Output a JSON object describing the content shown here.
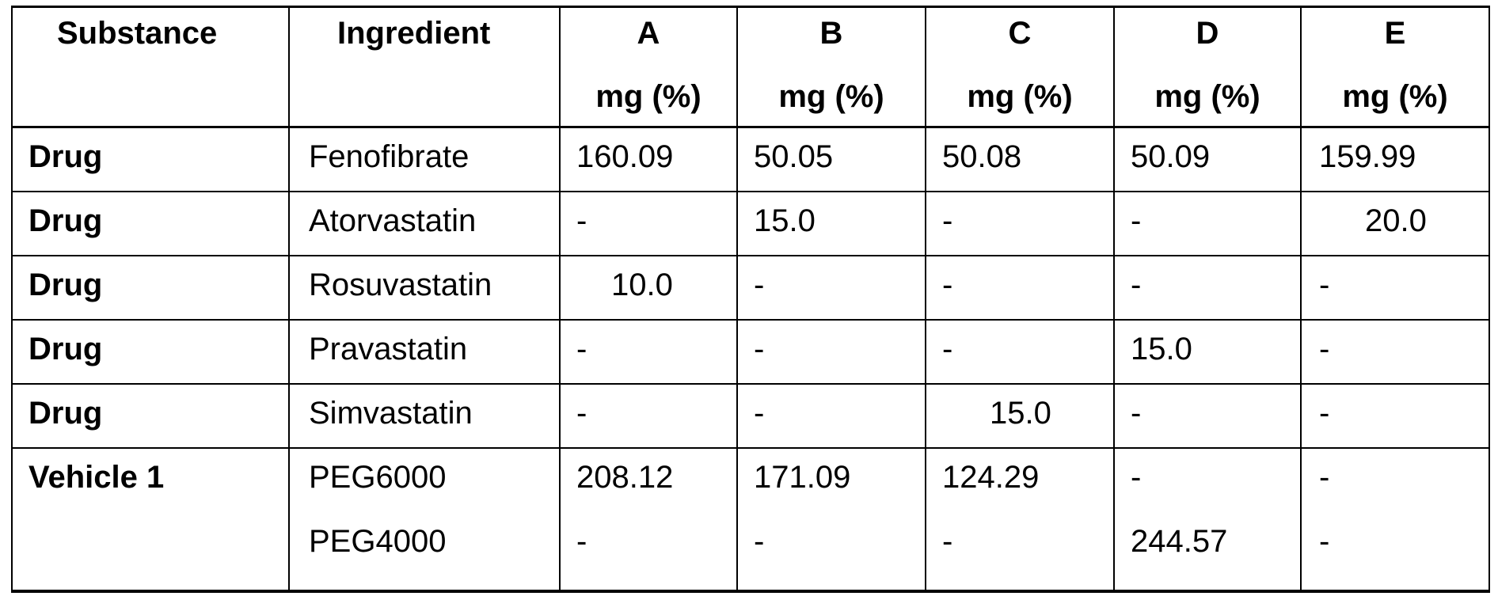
{
  "table": {
    "headers": {
      "substance": "Substance",
      "ingredient": "Ingredient",
      "columns": [
        {
          "letter": "A",
          "unit": "mg (%)"
        },
        {
          "letter": "B",
          "unit": "mg (%)"
        },
        {
          "letter": "C",
          "unit": "mg (%)"
        },
        {
          "letter": "D",
          "unit": "mg (%)"
        },
        {
          "letter": "E",
          "unit": "mg (%)"
        }
      ]
    },
    "rows": [
      {
        "substance": "Drug",
        "ingredient": "Fenofibrate",
        "values": [
          "160.09",
          "50.05",
          "50.08",
          "50.09",
          "159.99"
        ]
      },
      {
        "substance": "Drug",
        "ingredient": "Atorvastatin",
        "values": [
          "-",
          "15.0",
          "-",
          "-",
          "20.0"
        ]
      },
      {
        "substance": "Drug",
        "ingredient": "Rosuvastatin",
        "values": [
          "10.0",
          "-",
          "-",
          "-",
          "-"
        ]
      },
      {
        "substance": "Drug",
        "ingredient": "Pravastatin",
        "values": [
          "-",
          "-",
          "-",
          "15.0",
          "-"
        ]
      },
      {
        "substance": "Drug",
        "ingredient": "Simvastatin",
        "values": [
          "-",
          "-",
          "15.0",
          "-",
          "-"
        ]
      }
    ],
    "vehicle": {
      "substance": "Vehicle 1",
      "ingredients": [
        "PEG6000",
        "PEG4000"
      ],
      "values": [
        [
          "208.12",
          "-"
        ],
        [
          "171.09",
          "-"
        ],
        [
          "124.29",
          "-"
        ],
        [
          "-",
          "244.57"
        ],
        [
          "-",
          "-"
        ]
      ]
    }
  }
}
